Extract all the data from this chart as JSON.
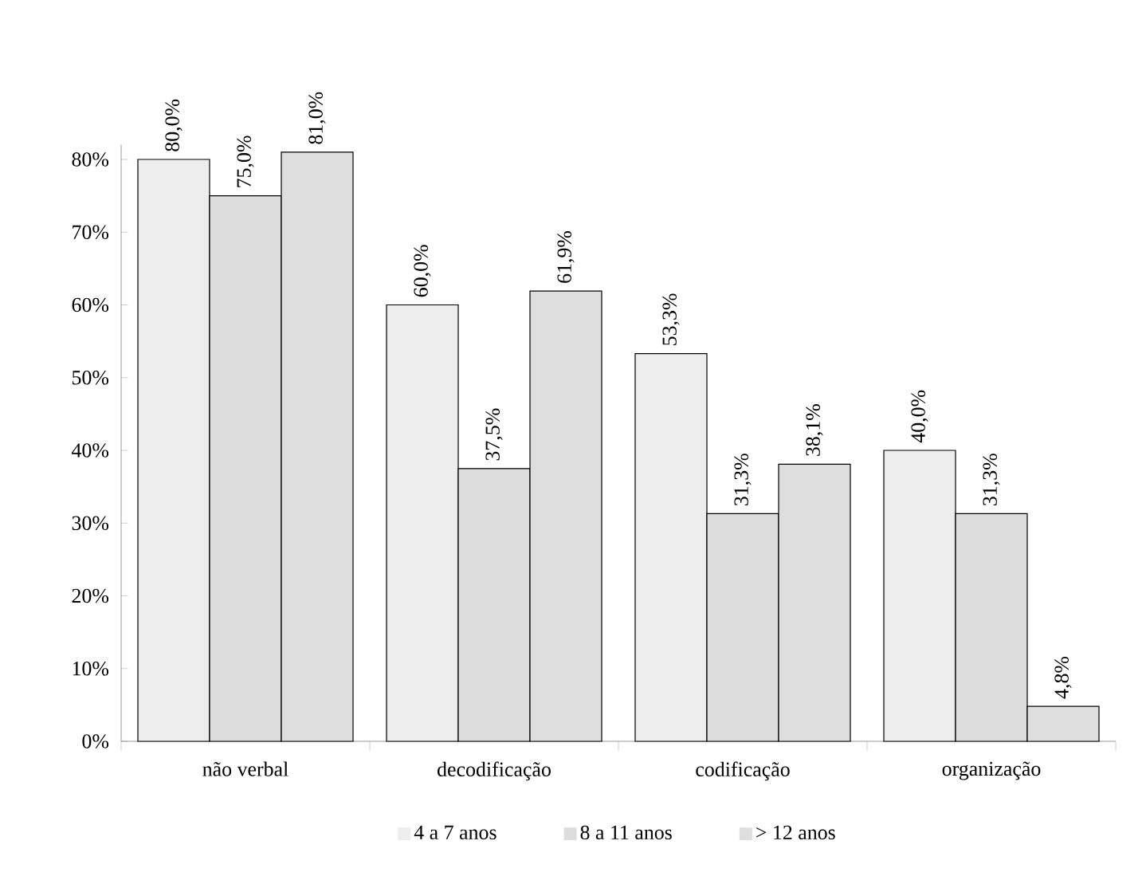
{
  "chart_data": {
    "type": "bar",
    "categories": [
      "não verbal",
      "decodificação",
      "codificação",
      "organização"
    ],
    "series": [
      {
        "name": "4 a 7 anos",
        "color": "#ededed",
        "values": [
          80.0,
          60.0,
          53.3,
          40.0
        ],
        "value_labels": [
          "80,0%",
          "60,0%",
          "53,3%",
          "40,0%"
        ]
      },
      {
        "name": "8 a 11 anos",
        "color": "#dddddd",
        "values": [
          75.0,
          37.5,
          31.3,
          31.3
        ],
        "value_labels": [
          "75,0%",
          "37,5%",
          "31,3%",
          "31,3%"
        ]
      },
      {
        "name": "> 12 anos",
        "color": "#dedede",
        "values": [
          81.0,
          61.9,
          38.1,
          4.8
        ],
        "value_labels": [
          "81,0%",
          "61,9%",
          "38,1%",
          "4,8%"
        ]
      }
    ],
    "ylim": [
      0,
      82
    ],
    "yticks": [
      {
        "value": 0,
        "label": "0%"
      },
      {
        "value": 10,
        "label": "10%"
      },
      {
        "value": 20,
        "label": "20%"
      },
      {
        "value": 30,
        "label": "30%"
      },
      {
        "value": 40,
        "label": "40%"
      },
      {
        "value": 50,
        "label": "50%"
      },
      {
        "value": 60,
        "label": "60%"
      },
      {
        "value": 70,
        "label": "70%"
      },
      {
        "value": 80,
        "label": "80%"
      }
    ],
    "legend": "bottom",
    "grid": false
  }
}
